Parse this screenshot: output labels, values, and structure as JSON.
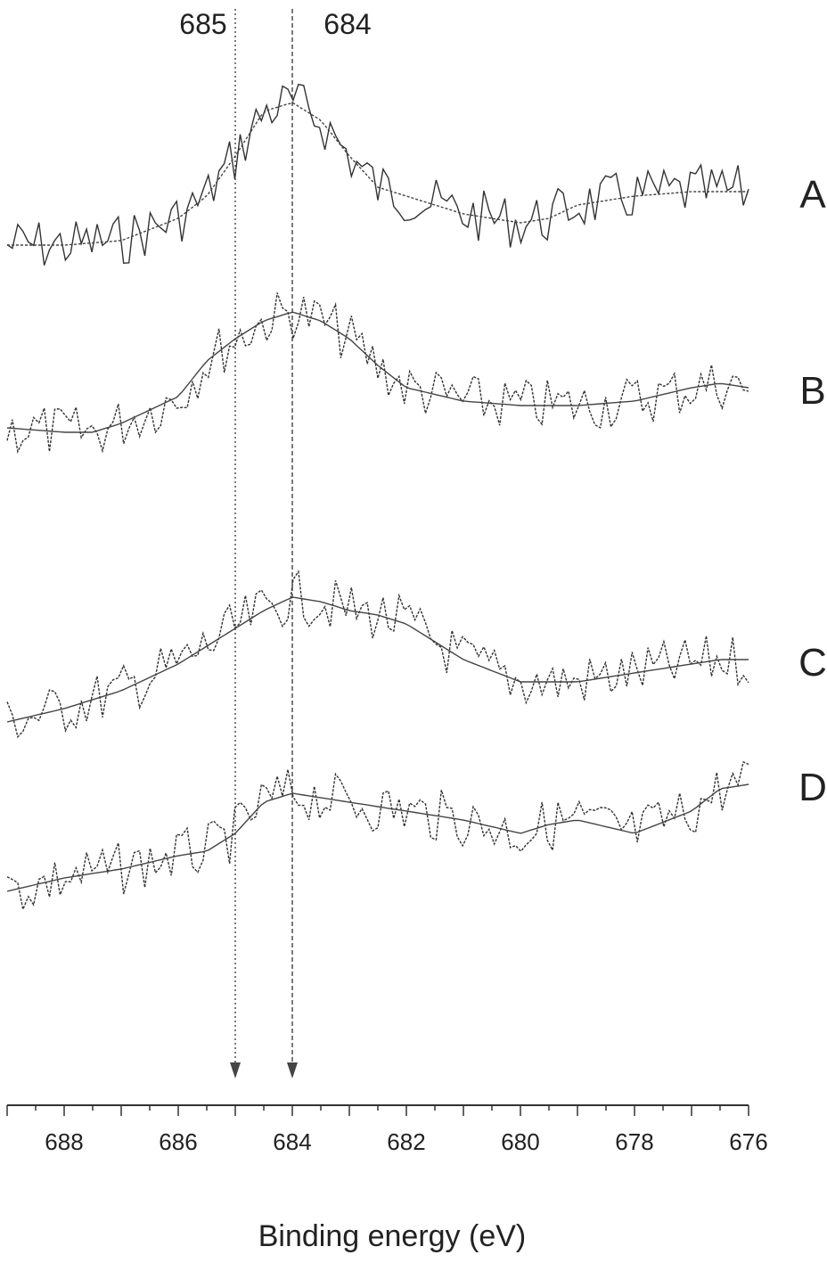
{
  "chart_data": {
    "type": "line",
    "xlabel": "Binding energy  (eV)",
    "ylabel": "",
    "xlim": [
      689,
      676
    ],
    "x_reversed": true,
    "x_ticks": [
      "688",
      "686",
      "684",
      "682",
      "680",
      "678",
      "676"
    ],
    "markers": [
      {
        "label": "685",
        "x": 685,
        "style": "dotted-arrow"
      },
      {
        "label": "684",
        "x": 684,
        "style": "dashed-arrow"
      }
    ],
    "series": [
      {
        "name": "A",
        "baseline": 275,
        "x": [
          689,
          688,
          687,
          686,
          685.5,
          685,
          684.5,
          684,
          683.5,
          683,
          682.5,
          682,
          681,
          680,
          679.5,
          679,
          678,
          677,
          676.5,
          676
        ],
        "values": [
          0,
          0,
          5,
          30,
          55,
          100,
          150,
          160,
          140,
          100,
          65,
          55,
          35,
          25,
          30,
          45,
          55,
          60,
          60,
          60
        ]
      },
      {
        "name": "B",
        "baseline": 485,
        "x": [
          689,
          688,
          687.5,
          687,
          686,
          685.5,
          685,
          684.5,
          684,
          683.5,
          683,
          682.5,
          682,
          681,
          680,
          679,
          678,
          677,
          676.5,
          676
        ],
        "values": [
          5,
          0,
          0,
          10,
          40,
          80,
          105,
          125,
          135,
          125,
          105,
          75,
          50,
          35,
          30,
          30,
          35,
          50,
          55,
          50
        ]
      },
      {
        "name": "C",
        "baseline": 810,
        "x": [
          689,
          688,
          687,
          686,
          685.5,
          685,
          684.5,
          684,
          683.5,
          683,
          682.5,
          682,
          681.5,
          681,
          680,
          679,
          678,
          677,
          676.5,
          676
        ],
        "values": [
          0,
          15,
          35,
          65,
          85,
          105,
          125,
          140,
          135,
          125,
          120,
          110,
          90,
          70,
          45,
          45,
          55,
          65,
          70,
          70
        ]
      },
      {
        "name": "D",
        "baseline": 1010,
        "x": [
          689,
          688,
          687,
          686,
          685.5,
          685,
          684.5,
          684,
          683.5,
          683,
          682,
          681,
          680,
          679.5,
          679,
          678,
          677,
          676.5,
          676
        ],
        "values": [
          10,
          25,
          35,
          50,
          55,
          75,
          110,
          120,
          115,
          110,
          100,
          90,
          75,
          85,
          90,
          75,
          100,
          125,
          130
        ]
      }
    ]
  }
}
